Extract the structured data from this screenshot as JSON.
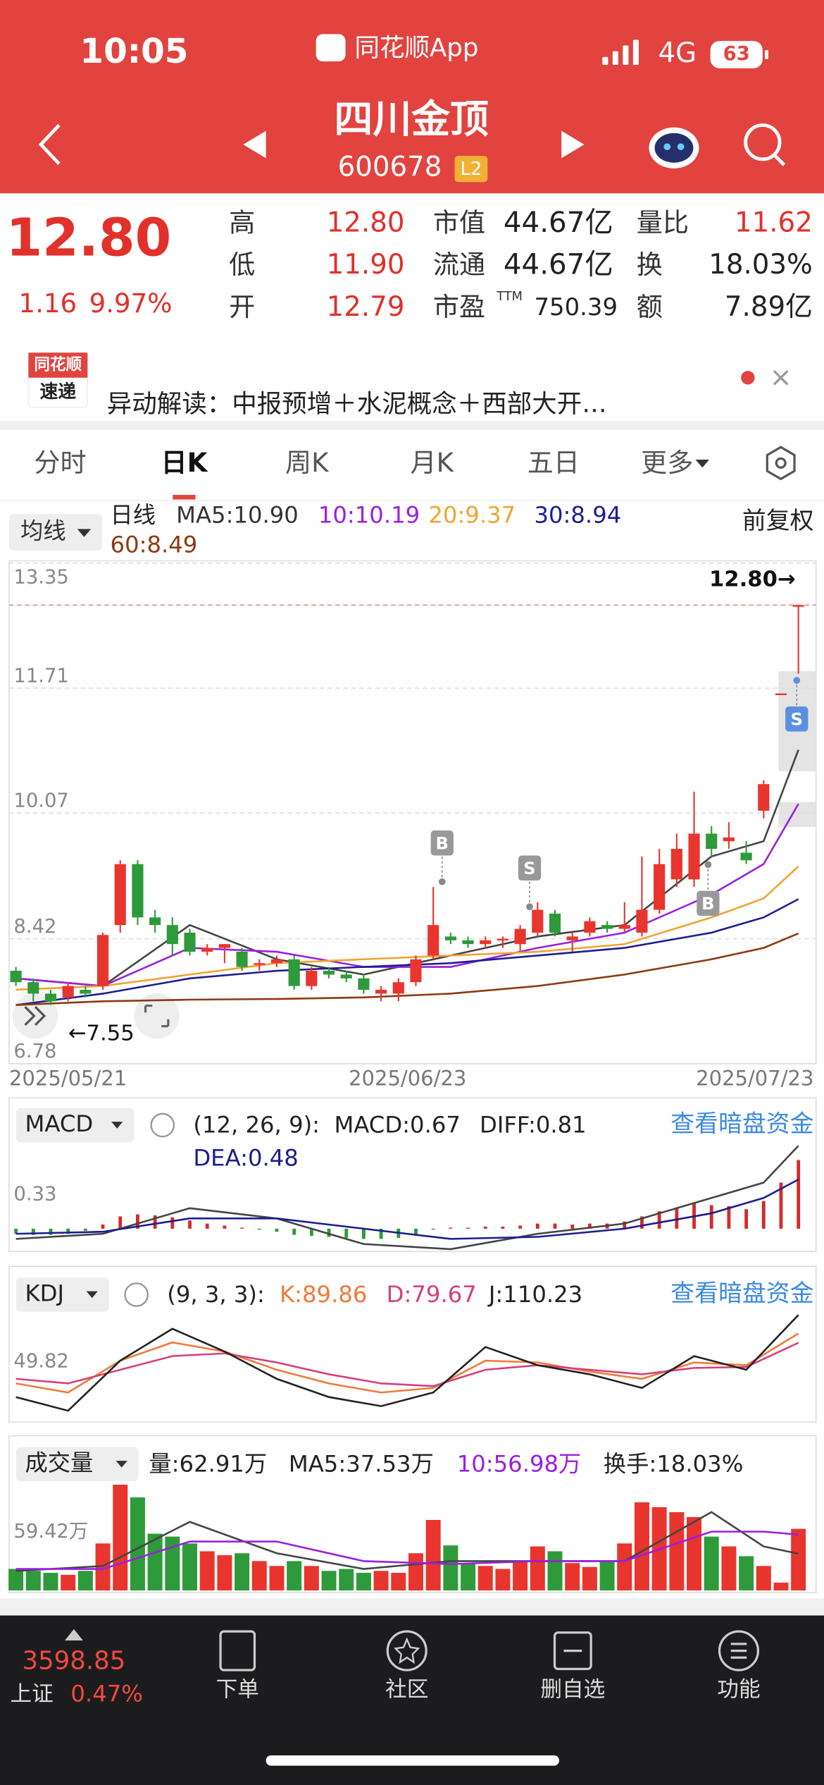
{
  "status_bar": {
    "time": "10:05",
    "app": "同花顺App",
    "network": "4G",
    "battery": "63"
  },
  "header": {
    "name": "四川金顶",
    "code": "600678",
    "badge": "L2"
  },
  "quote": {
    "price": "12.80",
    "change": "1.16",
    "change_pct": "9.97%",
    "stats": [
      {
        "label": "高",
        "value": "12.80"
      },
      {
        "label": "低",
        "value": "11.90"
      },
      {
        "label": "开",
        "value": "12.79"
      },
      {
        "label": "市值",
        "value": "44.67亿"
      },
      {
        "label": "流通",
        "value": "44.67亿"
      },
      {
        "label": "市盈",
        "sup": "TTM",
        "value": "750.39"
      },
      {
        "label": "量比",
        "value": "11.62"
      },
      {
        "label": "换",
        "value": "18.03%"
      },
      {
        "label": "额",
        "value": "7.89亿"
      }
    ]
  },
  "news": {
    "logo": [
      "同花顺",
      "速递"
    ],
    "text": "异动解读：中报预增＋水泥概念＋西部大开…"
  },
  "tabs": [
    "分时",
    "日K",
    "周K",
    "月K",
    "五日",
    "更多"
  ],
  "ma_bar": {
    "button": "均线",
    "period": "日线",
    "adjust": "前复权"
  },
  "chart_data": [
    {
      "type": "candlestick",
      "open": [
        8.0,
        7.85,
        7.7,
        7.65,
        7.75,
        7.8,
        8.6,
        9.4,
        8.7,
        8.6,
        8.5,
        8.25,
        8.3,
        8.25,
        8.1,
        8.1,
        8.15,
        7.8,
        8.0,
        7.95,
        7.9,
        7.7,
        7.7,
        7.85,
        8.2,
        8.45,
        8.4,
        8.35,
        8.4,
        8.35,
        8.5,
        8.75,
        8.4,
        8.5,
        8.6,
        8.55,
        8.5,
        8.8,
        9.2,
        9.2,
        9.8,
        9.7,
        9.55,
        10.1,
        11.64,
        12.79
      ],
      "high": [
        8.05,
        7.9,
        7.75,
        7.85,
        7.8,
        8.5,
        9.45,
        9.45,
        8.8,
        8.7,
        8.55,
        8.35,
        8.35,
        8.3,
        8.15,
        8.2,
        8.2,
        8.05,
        8.05,
        8.0,
        7.95,
        7.8,
        7.9,
        8.2,
        9.1,
        8.5,
        8.45,
        8.45,
        8.45,
        8.6,
        8.9,
        8.8,
        8.5,
        8.7,
        8.65,
        8.9,
        9.5,
        9.6,
        9.8,
        10.35,
        9.9,
        9.95,
        9.7,
        10.5,
        11.64,
        12.8
      ],
      "low": [
        7.8,
        7.6,
        7.55,
        7.6,
        7.65,
        7.75,
        8.5,
        8.6,
        8.5,
        8.2,
        8.2,
        8.2,
        8.1,
        8.0,
        8.0,
        8.05,
        7.75,
        7.75,
        7.9,
        7.85,
        7.7,
        7.6,
        7.6,
        7.8,
        8.15,
        8.35,
        8.3,
        8.3,
        8.3,
        8.25,
        8.45,
        8.45,
        8.25,
        8.45,
        8.5,
        8.5,
        8.45,
        8.75,
        9.1,
        9.1,
        9.5,
        9.6,
        9.4,
        10.0,
        11.64,
        11.9
      ],
      "close": [
        7.85,
        7.7,
        7.6,
        7.8,
        7.7,
        8.47,
        9.4,
        8.7,
        8.6,
        8.35,
        8.25,
        8.3,
        8.35,
        8.05,
        8.1,
        8.15,
        7.8,
        8.0,
        7.95,
        7.9,
        7.75,
        7.75,
        7.85,
        8.15,
        8.6,
        8.4,
        8.35,
        8.4,
        8.42,
        8.55,
        8.8,
        8.5,
        8.45,
        8.65,
        8.55,
        8.6,
        8.8,
        9.4,
        9.6,
        9.8,
        9.6,
        9.75,
        9.45,
        10.45,
        11.64,
        12.8
      ],
      "color_up": "#e8352e",
      "color_down": "#2e9a3a",
      "ylim": [
        6.78,
        13.35
      ],
      "yticks": [
        6.78,
        8.42,
        10.07,
        11.71,
        13.35
      ],
      "grid": true,
      "xticks": [
        {
          "value": 0,
          "label": "2025/05/21"
        },
        {
          "value": 22,
          "label": "2025/06/23"
        },
        {
          "value": 45,
          "label": "2025/07/23"
        }
      ],
      "annotations": [
        "12.80→",
        "←7.55"
      ],
      "markers": [
        "B",
        "S",
        "S",
        "B"
      ],
      "lines": {
        "x": [
          0,
          5,
          10,
          15,
          20,
          25,
          30,
          35,
          40,
          43,
          45
        ],
        "series": [
          {
            "label": "MA5:10.90",
            "color": "#444444",
            "values": [
              7.9,
              7.8,
              8.6,
              8.15,
              7.95,
              8.2,
              8.45,
              8.6,
              9.5,
              9.7,
              10.9
            ]
          },
          {
            "label": "10:10.19",
            "color": "#9b1fe0",
            "values": [
              7.9,
              7.8,
              8.3,
              8.25,
              8.05,
              8.05,
              8.3,
              8.5,
              9.0,
              9.4,
              10.19
            ]
          },
          {
            "label": "20:9.37",
            "color": "#f0a431",
            "values": [
              7.75,
              7.8,
              7.95,
              8.1,
              8.15,
              8.2,
              8.25,
              8.35,
              8.7,
              8.95,
              9.37
            ]
          },
          {
            "label": "30:8.94",
            "color": "#1d1d8f",
            "values": [
              7.55,
              7.7,
              7.9,
              8.0,
              8.05,
              8.1,
              8.2,
              8.3,
              8.5,
              8.7,
              8.94
            ]
          },
          {
            "label": "60:8.49",
            "color": "#8b3a12",
            "values": [
              7.55,
              7.6,
              7.62,
              7.63,
              7.65,
              7.7,
              7.8,
              7.95,
              8.15,
              8.3,
              8.49
            ]
          }
        ]
      }
    },
    {
      "type": "bar",
      "title": "MACD",
      "params": "(12, 26, 9):",
      "link": "查看暗盘资金",
      "label": "MACD:0.67",
      "values": [
        -0.05,
        -0.06,
        -0.06,
        -0.05,
        -0.02,
        0.04,
        0.12,
        0.14,
        0.13,
        0.11,
        0.08,
        0.05,
        0.03,
        0.01,
        -0.01,
        -0.03,
        -0.06,
        -0.07,
        -0.08,
        -0.09,
        -0.1,
        -0.1,
        -0.09,
        -0.06,
        0.0,
        0.01,
        0.01,
        0.02,
        0.02,
        0.03,
        0.05,
        0.05,
        0.04,
        0.05,
        0.05,
        0.07,
        0.12,
        0.17,
        0.2,
        0.25,
        0.23,
        0.22,
        0.19,
        0.27,
        0.45,
        0.67
      ],
      "color_up": "#d22b2b",
      "color_down": "#2e9a3a",
      "ylim": [
        -0.2,
        0.9
      ],
      "yticks": [
        0.33
      ],
      "lines": {
        "x": [
          0,
          5,
          10,
          15,
          20,
          25,
          30,
          35,
          40,
          43,
          45
        ],
        "series": [
          {
            "label": "DIFF:0.81",
            "color": "#444444",
            "values": [
              -0.1,
              -0.05,
              0.2,
              0.1,
              -0.15,
              -0.2,
              -0.05,
              0.05,
              0.3,
              0.45,
              0.81
            ]
          },
          {
            "label": "DEA:0.48",
            "color": "#1d1d8f",
            "values": [
              -0.05,
              -0.03,
              0.1,
              0.1,
              0.0,
              -0.1,
              -0.08,
              0.0,
              0.15,
              0.3,
              0.48
            ]
          }
        ]
      }
    },
    {
      "type": "line",
      "title": "KDJ",
      "params": "(9, 3, 3):",
      "link": "查看暗盘资金",
      "ylim": [
        -10,
        115
      ],
      "yticks": [
        49.82
      ],
      "lines": {
        "x": [
          0,
          3,
          6,
          9,
          12,
          15,
          18,
          21,
          24,
          27,
          30,
          33,
          36,
          39,
          42,
          45
        ],
        "series": [
          {
            "label": "K:89.86",
            "color": "#f07a3a",
            "values": [
              35,
              25,
              60,
              80,
              70,
              50,
              35,
              25,
              30,
              60,
              58,
              48,
              40,
              58,
              55,
              89.86
            ]
          },
          {
            "label": "D:79.67",
            "color": "#d4407a",
            "values": [
              40,
              35,
              50,
              65,
              68,
              58,
              45,
              35,
              32,
              50,
              55,
              50,
              45,
              52,
              53,
              79.67
            ]
          },
          {
            "label": "J:110.23",
            "color": "#222222",
            "values": [
              20,
              5,
              60,
              95,
              70,
              40,
              20,
              10,
              25,
              75,
              55,
              45,
              30,
              65,
              50,
              110.23
            ]
          }
        ]
      }
    },
    {
      "type": "bar",
      "title": "成交量",
      "label": "量:62.91万",
      "extra": "换手:18.03%",
      "values": [
        22,
        20,
        18,
        16,
        20,
        48,
        108,
        95,
        58,
        55,
        48,
        40,
        36,
        38,
        30,
        25,
        30,
        25,
        20,
        22,
        18,
        20,
        18,
        38,
        72,
        46,
        28,
        25,
        22,
        30,
        45,
        40,
        28,
        24,
        30,
        48,
        90,
        85,
        80,
        75,
        55,
        45,
        35,
        25,
        8,
        62.91
      ],
      "color_up": "#e8352e",
      "color_down": "#2e9a3a",
      "ylim": [
        0,
        115
      ],
      "yticks": [
        {
          "value": 59.42,
          "label": "59.42万"
        }
      ],
      "lines": {
        "x": [
          0,
          5,
          10,
          15,
          20,
          25,
          30,
          35,
          40,
          43,
          45
        ],
        "series": [
          {
            "label": "MA5:37.53万",
            "color": "#444444",
            "values": [
              20,
              25,
              70,
              38,
              22,
              30,
              30,
              30,
              80,
              45,
              37.53
            ]
          },
          {
            "label": "10:56.98万",
            "color": "#9b1fe0",
            "values": [
              22,
              22,
              50,
              50,
              30,
              27,
              30,
              30,
              60,
              60,
              56.98
            ]
          }
        ]
      }
    }
  ],
  "bottom_bar": {
    "index_value": "3598.85",
    "index_name": "上证",
    "index_change": "0.47%",
    "nav": [
      "下单",
      "社区",
      "删自选",
      "功能"
    ]
  }
}
